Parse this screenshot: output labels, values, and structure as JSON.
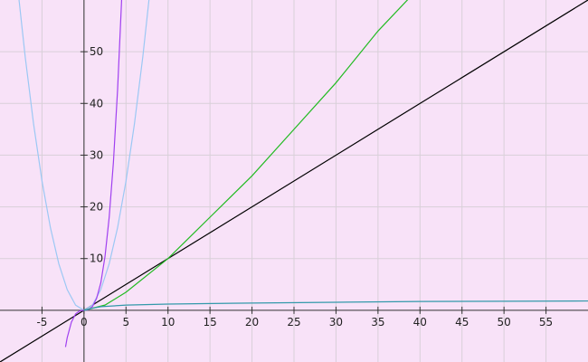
{
  "chart_data": {
    "type": "line",
    "xlim": [
      -10,
      60
    ],
    "ylim": [
      -10,
      60
    ],
    "xticks": [
      -5,
      0,
      5,
      10,
      15,
      20,
      25,
      30,
      35,
      40,
      45,
      50,
      55
    ],
    "yticks": [
      10,
      20,
      30,
      40,
      50
    ],
    "grid": true,
    "background": "#f8e2f8",
    "series": [
      {
        "color": "#000000",
        "x": [
          -10,
          60
        ],
        "values": [
          -10,
          60
        ]
      },
      {
        "color": "#9cc8f4",
        "x": [
          -8,
          -7,
          -6,
          -5,
          -4,
          -3,
          -2,
          -1,
          0,
          1,
          2,
          3,
          4,
          5,
          6,
          7,
          8
        ],
        "values": [
          64,
          49,
          36,
          25,
          16,
          9,
          4,
          1,
          0,
          1,
          4,
          9,
          16,
          25,
          36,
          49,
          64
        ]
      },
      {
        "color": "#a040f0",
        "x": [
          -2.2,
          -2,
          -1.5,
          -1,
          -0.5,
          0,
          0.5,
          1,
          1.5,
          2,
          2.5,
          3,
          3.5,
          4,
          4.5,
          4.7
        ],
        "values": [
          -7.1,
          -5.3,
          -2.3,
          -0.7,
          -0.1,
          0,
          0.1,
          0.7,
          2.3,
          5.3,
          10.4,
          18,
          28.6,
          42.7,
          60.8,
          69.2
        ]
      },
      {
        "color": "#22bb22",
        "x": [
          0,
          2.5,
          5,
          10,
          15,
          20,
          25,
          30,
          35,
          38.5,
          40
        ],
        "values": [
          0,
          1,
          3.5,
          10,
          18,
          26,
          35,
          44,
          54,
          60,
          63
        ]
      },
      {
        "color": "#3399aa",
        "x": [
          0,
          1,
          2,
          5,
          10,
          20,
          30,
          40,
          50,
          60
        ],
        "values": [
          0,
          0.4,
          0.7,
          1,
          1.2,
          1.4,
          1.55,
          1.7,
          1.75,
          1.8
        ]
      }
    ]
  }
}
